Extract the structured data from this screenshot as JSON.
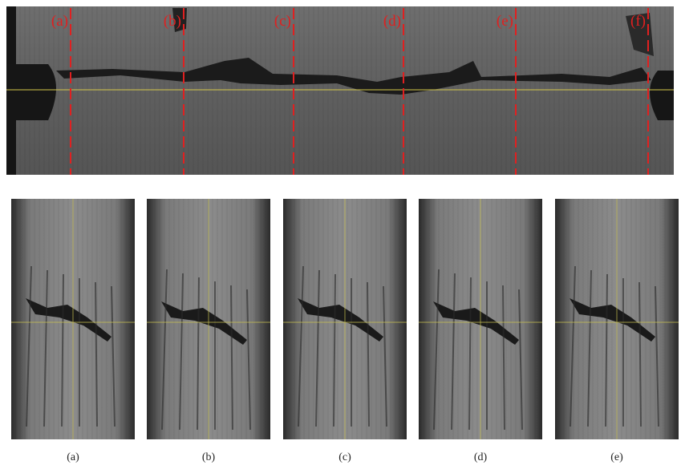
{
  "top_panel": {
    "section_labels": [
      "(a)",
      "(b)",
      "(c)",
      "(d)",
      "(e)",
      "(f)"
    ]
  },
  "bottom_panels": {
    "captions": [
      "(a)",
      "(b)",
      "(c)",
      "(d)",
      "(e)"
    ]
  }
}
